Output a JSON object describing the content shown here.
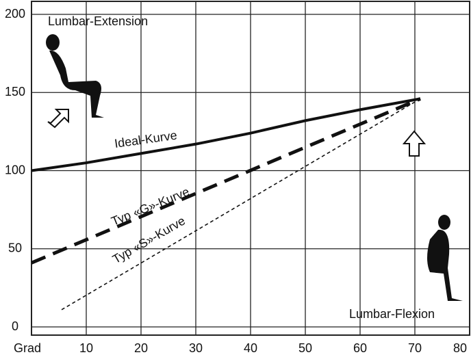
{
  "chart_data": {
    "type": "line",
    "annotations": {
      "top_left": "Lumbar-Extension",
      "bottom_right": "Lumbar-Flexion"
    },
    "x_label": "Grad",
    "xlim": [
      0,
      80
    ],
    "ylim": [
      0,
      200
    ],
    "xticks": [
      10,
      20,
      30,
      40,
      50,
      60,
      70,
      80
    ],
    "yticks": [
      0,
      50,
      100,
      150,
      200
    ],
    "grid": true,
    "series": [
      {
        "name": "Ideal-Kurve",
        "color": "#111",
        "dash": "none",
        "width": 4,
        "x": [
          0,
          10,
          20,
          30,
          40,
          50,
          60,
          71
        ],
        "values": [
          100,
          105,
          111,
          117,
          124,
          132,
          139,
          146
        ]
      },
      {
        "name": "Typ «G»-Kurve",
        "color": "#111",
        "dash": "22 12",
        "width": 5,
        "x": [
          0,
          71
        ],
        "values": [
          41,
          146
        ]
      },
      {
        "name": "Typ «S»-Kurve",
        "color": "#111",
        "dash": "5 4",
        "width": 1.6,
        "x": [
          5.5,
          71
        ],
        "values": [
          11,
          146
        ]
      }
    ]
  }
}
